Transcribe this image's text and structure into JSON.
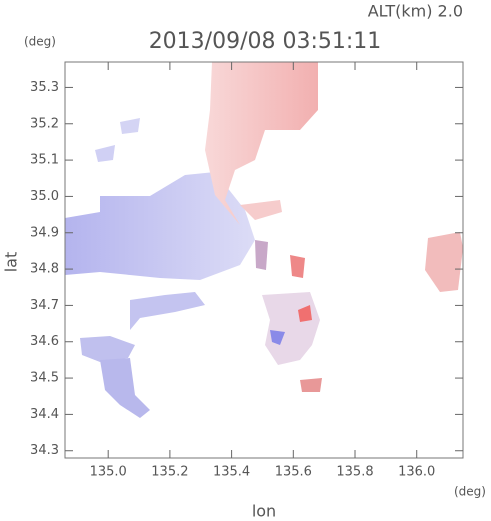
{
  "chart_data": {
    "type": "map",
    "title": "2013/09/08 03:51:11",
    "subtitle": "ALT(km) 2.0",
    "x_label": "lon",
    "y_label": "lat",
    "x_unit": "(deg)",
    "y_unit": "(deg)",
    "xlim": [
      134.86,
      136.15
    ],
    "xticks": [
      {
        "value": 135,
        "label": "135.0"
      },
      135.2,
      135.4,
      135.6,
      135.8,
      {
        "value": 136,
        "label": "136.0"
      }
    ],
    "ylim": [
      34.28,
      35.37
    ],
    "yticks": [
      34.3,
      34.4,
      34.5,
      34.6,
      34.7,
      34.8,
      34.9,
      {
        "value": 35,
        "label": "35.0"
      },
      35.1,
      35.2,
      35.3
    ]
  }
}
